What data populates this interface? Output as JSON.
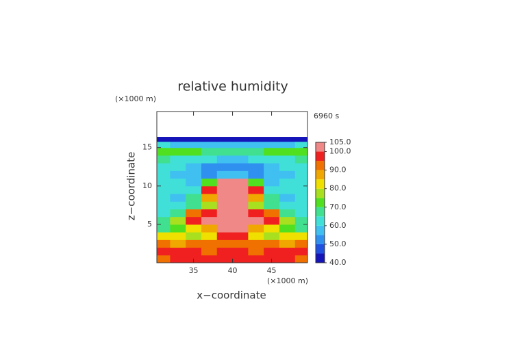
{
  "chart_data": {
    "type": "contour",
    "title": "relative humidity",
    "y_unit": "(×1000 m)",
    "x_unit": "(×1000 m)",
    "time_label": "6960 s",
    "x_label": "x−coordinate",
    "y_label": "z−coordinate",
    "xlim": [
      30.3,
      49.6
    ],
    "ylim": [
      0,
      19.7
    ],
    "xticks": [
      35,
      40,
      45
    ],
    "yticks": [
      5,
      10,
      15
    ],
    "x": [
      31,
      33,
      35,
      37,
      39,
      41,
      43,
      45,
      47,
      49
    ],
    "z": [
      0.5,
      1.5,
      2.5,
      3.5,
      4.5,
      5.5,
      6.5,
      7.5,
      8.5,
      9.5,
      10.5,
      11.5,
      12.5,
      13.5,
      14.5,
      15.5,
      16.1
    ],
    "values": [
      [
        92,
        97,
        97,
        96,
        95,
        95,
        96,
        97,
        97,
        92
      ],
      [
        96,
        97,
        95,
        93,
        97,
        97,
        93,
        95,
        97,
        96
      ],
      [
        90,
        88,
        91,
        90,
        92,
        92,
        90,
        91,
        88,
        90
      ],
      [
        82,
        80,
        78,
        82,
        97,
        97,
        82,
        78,
        80,
        82
      ],
      [
        68,
        72,
        82,
        88,
        101,
        101,
        88,
        82,
        72,
        68
      ],
      [
        65,
        75,
        95,
        101,
        102,
        102,
        101,
        95,
        75,
        65
      ],
      [
        64,
        68,
        90,
        98,
        101,
        101,
        98,
        90,
        68,
        64
      ],
      [
        62,
        64,
        68,
        75,
        101,
        101,
        75,
        68,
        64,
        62
      ],
      [
        60,
        58,
        66,
        85,
        102,
        102,
        85,
        66,
        58,
        60
      ],
      [
        62,
        60,
        63,
        95,
        102,
        102,
        95,
        63,
        60,
        62
      ],
      [
        62,
        60,
        58,
        70,
        101,
        101,
        70,
        58,
        60,
        62
      ],
      [
        63,
        58,
        55,
        52,
        58,
        58,
        52,
        55,
        58,
        63
      ],
      [
        62,
        60,
        56,
        52,
        50,
        50,
        52,
        56,
        60,
        62
      ],
      [
        66,
        64,
        62,
        60,
        58,
        58,
        60,
        62,
        64,
        66
      ],
      [
        70,
        72,
        70,
        68,
        66,
        66,
        68,
        70,
        72,
        70
      ],
      [
        60,
        58,
        56,
        56,
        56,
        56,
        56,
        56,
        58,
        60
      ],
      [
        44,
        44,
        42,
        42,
        42,
        42,
        42,
        42,
        44,
        44
      ]
    ],
    "levels": [
      40,
      45,
      50,
      55,
      60,
      65,
      70,
      75,
      80,
      85,
      90,
      95,
      100,
      105
    ],
    "colors": [
      "#1414b8",
      "#2050e0",
      "#3090f0",
      "#40c0f0",
      "#40e0d8",
      "#40e090",
      "#50e020",
      "#a8e020",
      "#f0e000",
      "#f0a800",
      "#f07000",
      "#f02020",
      "#f08888"
    ],
    "colorbar_ticks": [
      {
        "value": 40,
        "label": "40.0"
      },
      {
        "value": 50,
        "label": "50.0"
      },
      {
        "value": 60,
        "label": "60.0"
      },
      {
        "value": 70,
        "label": "70.0"
      },
      {
        "value": 80,
        "label": "80.0"
      },
      {
        "value": 90,
        "label": "90.0"
      },
      {
        "value": 100,
        "label": "100.0"
      },
      {
        "value": 105,
        "label": "105.0"
      }
    ]
  }
}
